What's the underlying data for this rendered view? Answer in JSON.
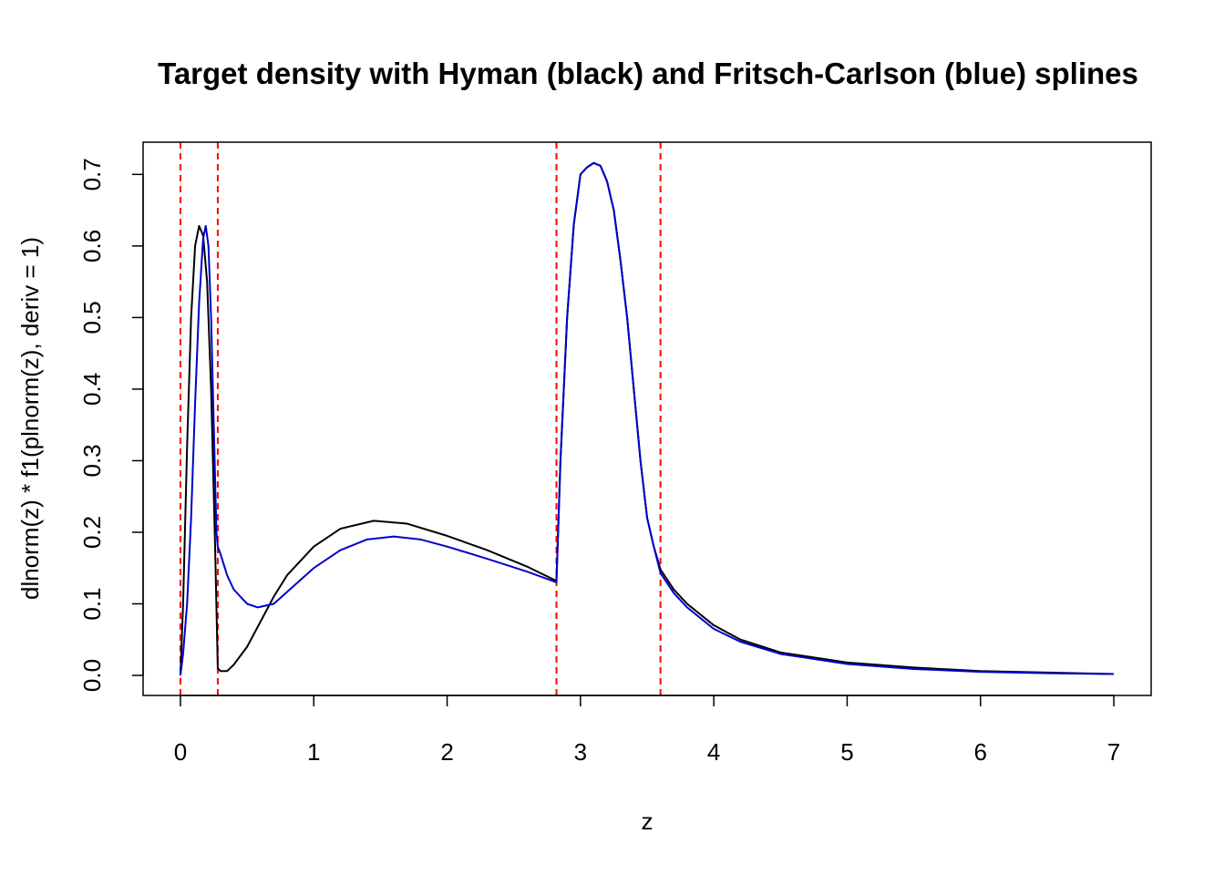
{
  "chart_data": {
    "type": "line",
    "title": "Target density with Hyman (black) and Fritsch-Carlson (blue) splines",
    "xlabel": "z",
    "ylabel": "dlnorm(z) * f1(plnorm(z), deriv = 1)",
    "xlim": [
      -0.28,
      7.28
    ],
    "ylim": [
      -0.028,
      0.745
    ],
    "xticks": [
      0,
      1,
      2,
      3,
      4,
      5,
      6,
      7
    ],
    "yticks": [
      0.0,
      0.1,
      0.2,
      0.3,
      0.4,
      0.5,
      0.6,
      0.7
    ],
    "xtick_labels": [
      "0",
      "1",
      "2",
      "3",
      "4",
      "5",
      "6",
      "7"
    ],
    "ytick_labels": [
      "0.0",
      "0.1",
      "0.2",
      "0.3",
      "0.4",
      "0.5",
      "0.6",
      "0.7"
    ],
    "grid": false,
    "vlines": {
      "color": "#ff0000",
      "style": "dashed",
      "x": [
        0.0,
        0.28,
        2.82,
        3.6
      ]
    },
    "series": [
      {
        "color": "#000000",
        "x": [
          0.0,
          0.02,
          0.05,
          0.08,
          0.11,
          0.14,
          0.17,
          0.2,
          0.23,
          0.26,
          0.28,
          0.3,
          0.35,
          0.4,
          0.5,
          0.6,
          0.7,
          0.8,
          1.0,
          1.2,
          1.45,
          1.7,
          2.0,
          2.3,
          2.6,
          2.82,
          2.85,
          2.9,
          2.95,
          3.0,
          3.05,
          3.1,
          3.15,
          3.2,
          3.25,
          3.3,
          3.35,
          3.4,
          3.45,
          3.5,
          3.55,
          3.6,
          3.7,
          3.8,
          4.0,
          4.2,
          4.5,
          5.0,
          5.5,
          6.0,
          6.5,
          7.0
        ],
        "y": [
          0.0,
          0.1,
          0.32,
          0.5,
          0.6,
          0.628,
          0.615,
          0.55,
          0.4,
          0.18,
          0.01,
          0.006,
          0.006,
          0.015,
          0.04,
          0.075,
          0.11,
          0.14,
          0.18,
          0.205,
          0.216,
          0.212,
          0.195,
          0.175,
          0.152,
          0.132,
          0.3,
          0.5,
          0.63,
          0.7,
          0.71,
          0.716,
          0.712,
          0.69,
          0.65,
          0.58,
          0.5,
          0.4,
          0.3,
          0.22,
          0.18,
          0.148,
          0.12,
          0.1,
          0.07,
          0.05,
          0.032,
          0.018,
          0.011,
          0.006,
          0.004,
          0.002
        ]
      },
      {
        "color": "#0000cc",
        "x": [
          0.0,
          0.02,
          0.05,
          0.08,
          0.11,
          0.14,
          0.17,
          0.19,
          0.21,
          0.23,
          0.25,
          0.27,
          0.28,
          0.3,
          0.35,
          0.4,
          0.5,
          0.58,
          0.7,
          0.85,
          1.0,
          1.2,
          1.4,
          1.6,
          1.8,
          2.0,
          2.3,
          2.6,
          2.82,
          2.85,
          2.9,
          2.95,
          3.0,
          3.05,
          3.1,
          3.15,
          3.2,
          3.25,
          3.3,
          3.35,
          3.4,
          3.45,
          3.5,
          3.55,
          3.6,
          3.7,
          3.8,
          4.0,
          4.2,
          4.5,
          5.0,
          5.5,
          6.0,
          6.5,
          7.0
        ],
        "y": [
          0.0,
          0.03,
          0.1,
          0.22,
          0.38,
          0.52,
          0.61,
          0.628,
          0.6,
          0.5,
          0.35,
          0.2,
          0.18,
          0.17,
          0.14,
          0.12,
          0.1,
          0.095,
          0.1,
          0.125,
          0.15,
          0.175,
          0.19,
          0.194,
          0.19,
          0.18,
          0.163,
          0.145,
          0.13,
          0.3,
          0.5,
          0.63,
          0.7,
          0.71,
          0.716,
          0.712,
          0.69,
          0.65,
          0.58,
          0.5,
          0.4,
          0.3,
          0.22,
          0.18,
          0.143,
          0.115,
          0.095,
          0.065,
          0.047,
          0.03,
          0.016,
          0.009,
          0.005,
          0.003,
          0.002
        ]
      }
    ]
  }
}
